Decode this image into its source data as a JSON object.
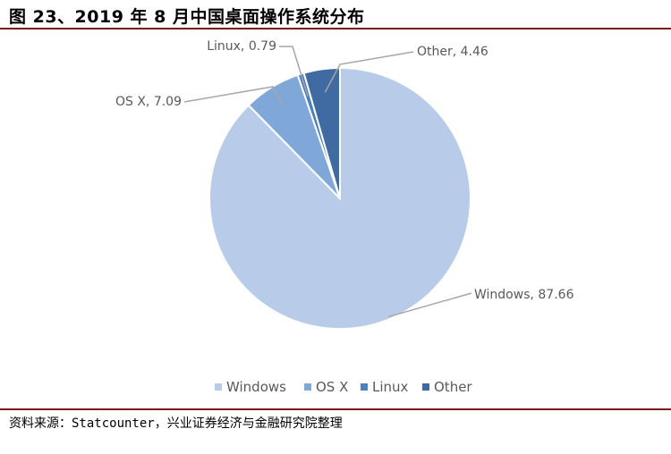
{
  "figure": {
    "title": "图 23、2019 年 8 月中国桌面操作系统分布",
    "source": "资料来源：Statcounter，兴业证券经济与金融研究院整理"
  },
  "chart_data": {
    "type": "pie",
    "title": "",
    "slices": [
      {
        "name": "Windows",
        "value": 87.66,
        "color": "#b8cce9",
        "label": "Windows, 87.66"
      },
      {
        "name": "OS X",
        "value": 7.09,
        "color": "#7fa8d8",
        "label": "OS X, 7.09"
      },
      {
        "name": "Linux",
        "value": 0.79,
        "color": "#4a80bd",
        "label": "Linux, 0.79"
      },
      {
        "name": "Other",
        "value": 4.46,
        "color": "#3f6aa2",
        "label": "Other, 4.46"
      }
    ],
    "start_angle_clockwise_from_top": 0,
    "legend": {
      "position": "bottom",
      "items": [
        "Windows",
        "OS X",
        "Linux",
        "Other"
      ]
    }
  }
}
